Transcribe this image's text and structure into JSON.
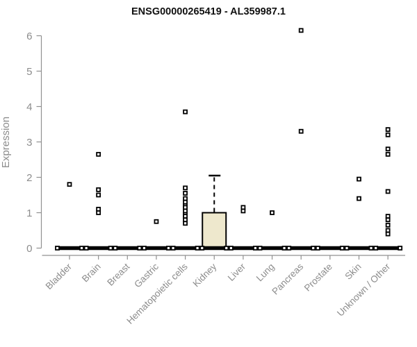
{
  "title": "ENSG00000265419 - AL359987.1",
  "colors": {
    "background": "#ffffff",
    "axis": "#909090",
    "axis_text": "#8c8c8c",
    "title_text": "#111111",
    "box_fill": "#eee8cd",
    "box_stroke": "#000000",
    "point": "#000000"
  },
  "chart_data": {
    "type": "boxplot",
    "title": "ENSG00000265419 - AL359987.1",
    "xlabel": "",
    "ylabel": "Expression",
    "ylim": [
      0,
      6.3
    ],
    "yticks": [
      0,
      1,
      2,
      3,
      4,
      5,
      6
    ],
    "grid": false,
    "legend": "none",
    "box_fill": "#eee8cd",
    "categories": [
      "Bladder",
      "Brain",
      "Breast",
      "Gastric",
      "Hematopoietic cells",
      "Kidney",
      "Liver",
      "Lung",
      "Pancreas",
      "Prostate",
      "Skin",
      "Unknown / Other"
    ],
    "boxes": [
      {
        "category": "Bladder",
        "median": 0,
        "q1": 0,
        "q3": 0,
        "whisker_low": 0,
        "whisker_high": 0,
        "outliers": [
          1.8
        ]
      },
      {
        "category": "Brain",
        "median": 0,
        "q1": 0,
        "q3": 0,
        "whisker_low": 0,
        "whisker_high": 0,
        "outliers": [
          2.65,
          1.65,
          1.5,
          1.1,
          1.0
        ]
      },
      {
        "category": "Breast",
        "median": 0,
        "q1": 0,
        "q3": 0,
        "whisker_low": 0,
        "whisker_high": 0,
        "outliers": []
      },
      {
        "category": "Gastric",
        "median": 0,
        "q1": 0,
        "q3": 0,
        "whisker_low": 0,
        "whisker_high": 0,
        "outliers": [
          0.75
        ]
      },
      {
        "category": "Hematopoietic cells",
        "median": 0,
        "q1": 0,
        "q3": 0,
        "whisker_low": 0,
        "whisker_high": 0,
        "outliers": [
          3.85,
          1.7,
          1.55,
          1.4,
          1.3,
          1.2,
          1.15,
          1.05,
          0.95,
          0.9,
          0.8,
          0.7
        ]
      },
      {
        "category": "Kidney",
        "median": 0,
        "q1": 0,
        "q3": 1.0,
        "whisker_low": 0,
        "whisker_high": 2.05,
        "outliers": []
      },
      {
        "category": "Liver",
        "median": 0,
        "q1": 0,
        "q3": 0,
        "whisker_low": 0,
        "whisker_high": 0,
        "outliers": [
          1.15,
          1.05
        ]
      },
      {
        "category": "Lung",
        "median": 0,
        "q1": 0,
        "q3": 0,
        "whisker_low": 0,
        "whisker_high": 0,
        "outliers": [
          1.0
        ]
      },
      {
        "category": "Pancreas",
        "median": 0,
        "q1": 0,
        "q3": 0,
        "whisker_low": 0,
        "whisker_high": 0,
        "outliers": [
          6.15,
          3.3
        ]
      },
      {
        "category": "Prostate",
        "median": 0,
        "q1": 0,
        "q3": 0,
        "whisker_low": 0,
        "whisker_high": 0,
        "outliers": []
      },
      {
        "category": "Skin",
        "median": 0,
        "q1": 0,
        "q3": 0,
        "whisker_low": 0,
        "whisker_high": 0,
        "outliers": [
          1.95,
          1.4
        ]
      },
      {
        "category": "Unknown / Other",
        "median": 0,
        "q1": 0,
        "q3": 0,
        "whisker_low": 0,
        "whisker_high": 0,
        "outliers": [
          3.35,
          3.2,
          2.8,
          2.65,
          1.6,
          0.9,
          0.8,
          0.65,
          0.5,
          0.4
        ]
      }
    ]
  }
}
